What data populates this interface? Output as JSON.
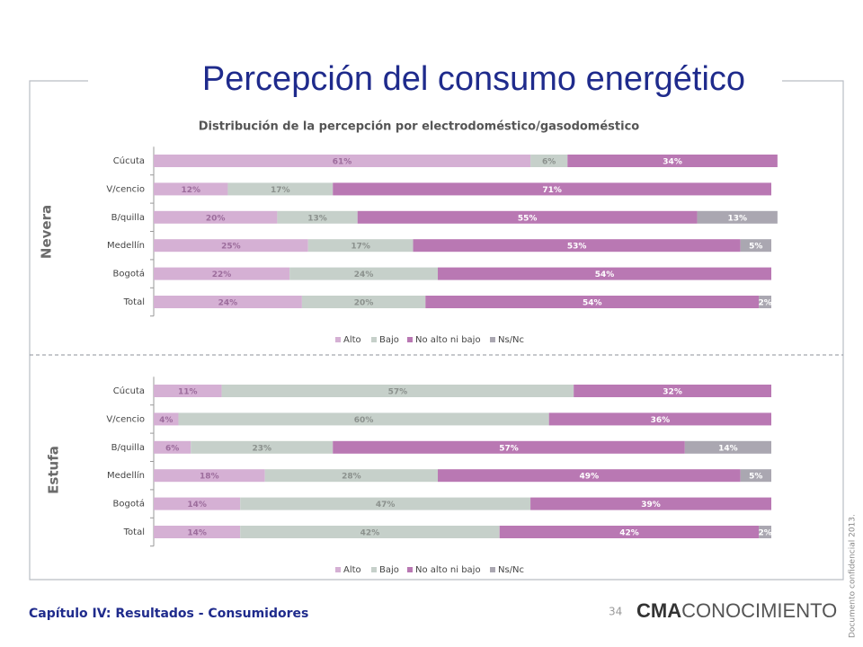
{
  "slide": {
    "title": "Percepción del consumo energético",
    "subtitle": "Distribución de la percepción por electrodoméstico/gasodoméstico",
    "footer": "Capítulo IV: Resultados - Consumidores",
    "page": "34",
    "logo_bold": "CMA",
    "logo_light": "CONOCIMIENTO",
    "side_note": "Documento confidencial 2013."
  },
  "chart_data": [
    {
      "type": "bar",
      "orientation": "horizontal",
      "stacked": true,
      "label": "Nevera",
      "categories": [
        "Cúcuta",
        "V/cencio",
        "B/quilla",
        "Medellín",
        "Bogotá",
        "Total"
      ],
      "xlim": [
        0,
        100
      ],
      "legend": "bottom",
      "series": [
        {
          "name": "Alto",
          "color": "#d5b0d4",
          "values": [
            61,
            12,
            20,
            25,
            22,
            24
          ],
          "value_labels": [
            "61%",
            "12%",
            "20%",
            "25%",
            "22%",
            "24%"
          ]
        },
        {
          "name": "Bajo",
          "color": "#c6d0ca",
          "values": [
            6,
            17,
            13,
            17,
            24,
            20
          ],
          "value_labels": [
            "6%",
            "17%",
            "13%",
            "17%",
            "24%",
            "20%"
          ]
        },
        {
          "name": "No alto ni bajo",
          "color": "#b978b3",
          "values": [
            34,
            71,
            55,
            53,
            54,
            54
          ],
          "value_labels": [
            "34%",
            "71%",
            "55%",
            "53%",
            "54%",
            "54%"
          ]
        },
        {
          "name": "Ns/Nc",
          "color": "#aaa7b1",
          "values": [
            0,
            0,
            13,
            5,
            0,
            2
          ],
          "value_labels": [
            null,
            null,
            "13%",
            "5%",
            null,
            "2%"
          ]
        }
      ]
    },
    {
      "type": "bar",
      "orientation": "horizontal",
      "stacked": true,
      "label": "Estufa",
      "categories": [
        "Cúcuta",
        "V/cencio",
        "B/quilla",
        "Medellín",
        "Bogotá",
        "Total"
      ],
      "xlim": [
        0,
        100
      ],
      "legend": "bottom",
      "series": [
        {
          "name": "Alto",
          "color": "#d5b0d4",
          "values": [
            11,
            4,
            6,
            18,
            14,
            14
          ],
          "value_labels": [
            "11%",
            "4%",
            "6%",
            "18%",
            "14%",
            "14%"
          ]
        },
        {
          "name": "Bajo",
          "color": "#c6d0ca",
          "values": [
            57,
            60,
            23,
            28,
            47,
            42
          ],
          "value_labels": [
            "57%",
            "60%",
            "23%",
            "28%",
            "47%",
            "42%"
          ]
        },
        {
          "name": "No alto ni bajo",
          "color": "#b978b3",
          "values": [
            32,
            36,
            57,
            49,
            39,
            42
          ],
          "value_labels": [
            "32%",
            "36%",
            "57%",
            "49%",
            "39%",
            "42%"
          ]
        },
        {
          "name": "Ns/Nc",
          "color": "#aaa7b1",
          "values": [
            0,
            0,
            14,
            5,
            0,
            2
          ],
          "value_labels": [
            null,
            null,
            "14%",
            "5%",
            null,
            "2%"
          ]
        }
      ]
    }
  ]
}
